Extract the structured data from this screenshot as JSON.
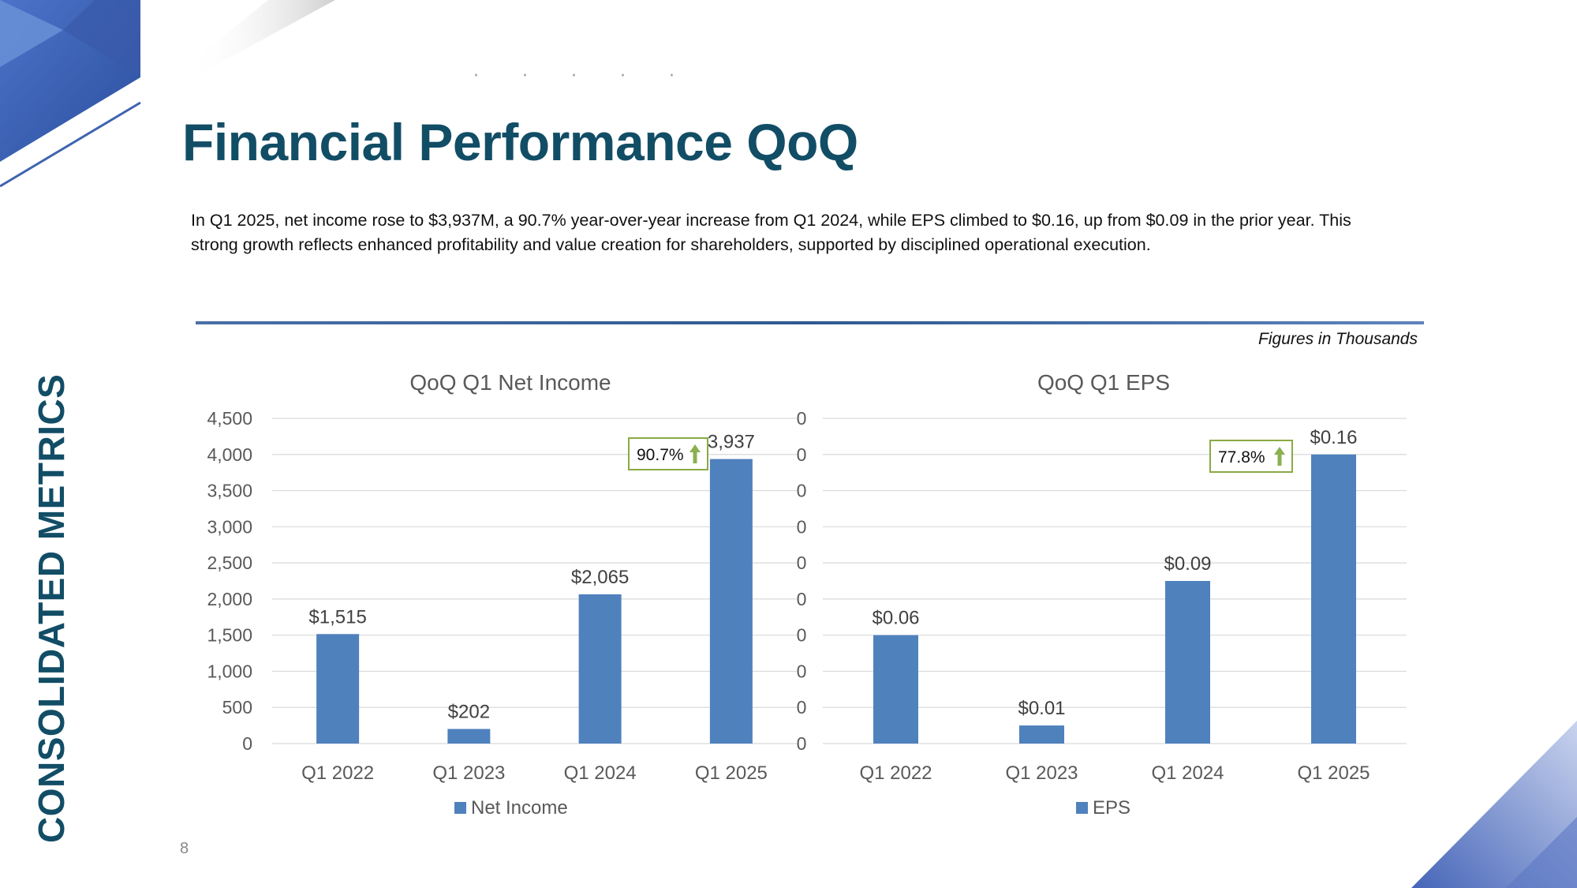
{
  "slide": {
    "title": "Financial Performance QoQ",
    "side_title": "CONSOLIDATED METRICS",
    "intro": "In Q1 2025, net income rose to $3,937M, a 90.7% year-over-year increase from Q1 2024, while EPS climbed to $0.16, up from $0.09 in the prior year. This strong growth reflects enhanced profitability and value creation for shareholders, supported by disciplined operational execution.",
    "figures_note": "Figures in Thousands",
    "page_number": "8",
    "dots": "· · · · ·"
  },
  "colors": {
    "bar": "#4f81bd",
    "title": "#124d66",
    "callout_border": "#8aaa45",
    "arrow": "#8bb050",
    "axis_text": "#595959",
    "grid": "#d9d9d9"
  },
  "chart_data": [
    {
      "type": "bar",
      "title": "QoQ Q1 Net Income",
      "categories": [
        "Q1 2022",
        "Q1 2023",
        "Q1 2024",
        "Q1 2025"
      ],
      "series": [
        {
          "name": "Net Income",
          "values": [
            1515,
            202,
            2065,
            3937
          ]
        }
      ],
      "data_labels": [
        "$1,515",
        "$202",
        "$2,065",
        "3,937"
      ],
      "ylim": [
        0,
        4500
      ],
      "yticks": [
        "0",
        "500",
        "1,000",
        "1,500",
        "2,000",
        "2,500",
        "3,000",
        "3,500",
        "4,000",
        "4,500"
      ],
      "grid": true,
      "legend": "bottom",
      "callout": {
        "text": "90.7%",
        "direction": "up"
      }
    },
    {
      "type": "bar",
      "title": "QoQ Q1 EPS",
      "categories": [
        "Q1 2022",
        "Q1 2023",
        "Q1 2024",
        "Q1 2025"
      ],
      "series": [
        {
          "name": "EPS",
          "values": [
            0.06,
            0.01,
            0.09,
            0.16
          ]
        }
      ],
      "data_labels": [
        "$0.06",
        "$0.01",
        "$0.09",
        "$0.16"
      ],
      "ylim": [
        0,
        0.18
      ],
      "yticks": [
        "0",
        "0",
        "0",
        "0",
        "0",
        "0",
        "0",
        "0",
        "0",
        "0"
      ],
      "grid": true,
      "legend": "bottom",
      "callout": {
        "text": "77.8%",
        "direction": "up"
      }
    }
  ]
}
